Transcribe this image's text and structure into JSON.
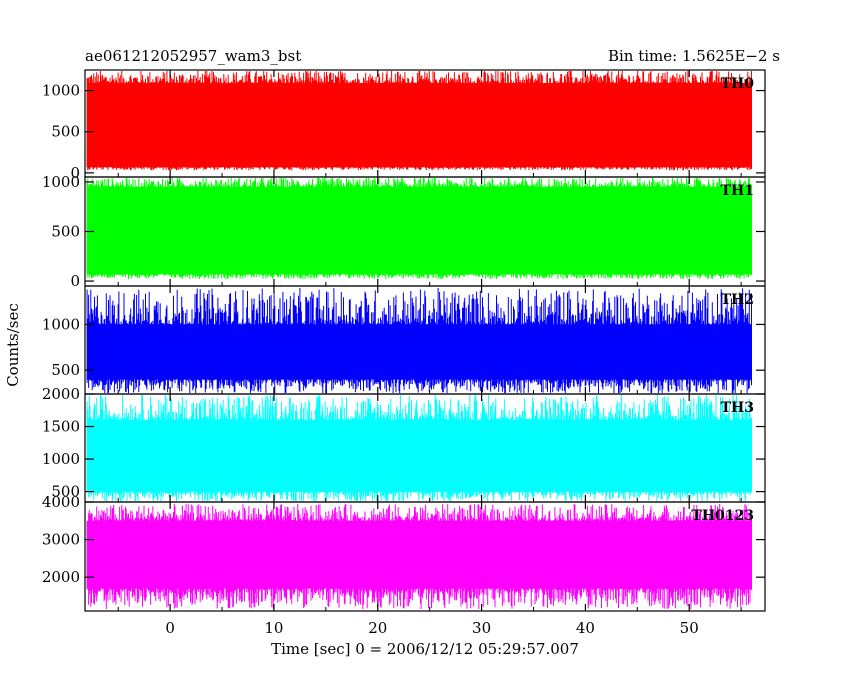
{
  "header": {
    "title": "ae061212052957_wam3_bst",
    "bin_time": "Bin time: 1.5625E−2 s"
  },
  "chart_data": {
    "type": "line",
    "xlabel": "Time [sec] 0 = 2006/12/12 05:29:57.007",
    "ylabel": "Counts/sec",
    "xlim": [
      -8.2,
      57.3
    ],
    "data_x_range": [
      -8,
      56
    ],
    "x_ticks": [
      0,
      10,
      20,
      30,
      40,
      50
    ],
    "grid": false,
    "panels": [
      {
        "name": "TH0",
        "color": "#ff0000",
        "ylim": [
          -50,
          1250
        ],
        "y_ticks": [
          0,
          500,
          1000
        ],
        "y_tick_labels": [
          "0",
          "500",
          "1000"
        ],
        "baseline": 600,
        "noise_low": 70,
        "noise_high": 1090,
        "peak_max": 1250,
        "peak_min": 30
      },
      {
        "name": "TH1",
        "color": "#00ff00",
        "ylim": [
          -50,
          1050
        ],
        "y_ticks": [
          0,
          500,
          1000
        ],
        "y_tick_labels": [
          "0",
          "500",
          "1000"
        ],
        "baseline": 500,
        "noise_low": 70,
        "noise_high": 950,
        "peak_max": 1050,
        "peak_min": 20
      },
      {
        "name": "TH2",
        "color": "#0000ff",
        "ylim": [
          240,
          1420
        ],
        "y_ticks": [
          500,
          1000
        ],
        "y_tick_labels": [
          "500",
          "1000"
        ],
        "baseline": 720,
        "noise_low": 400,
        "noise_high": 1000,
        "peak_max": 1400,
        "peak_min": 240
      },
      {
        "name": "TH3",
        "color": "#00ffff",
        "ylim": [
          340,
          2000
        ],
        "y_ticks": [
          500,
          1000,
          1500,
          2000
        ],
        "y_tick_labels": [
          "500",
          "1000",
          "1500",
          "2000"
        ],
        "baseline": 1100,
        "noise_low": 500,
        "noise_high": 1600,
        "peak_max": 2000,
        "peak_min": 340
      },
      {
        "name": "TH0123",
        "color": "#ff00ff",
        "ylim": [
          1100,
          4000
        ],
        "y_ticks": [
          2000,
          3000,
          4000
        ],
        "y_tick_labels": [
          "2000",
          "3000",
          "4000"
        ],
        "baseline": 2650,
        "noise_low": 1700,
        "noise_high": 3500,
        "peak_max": 3950,
        "peak_min": 1150
      }
    ]
  }
}
